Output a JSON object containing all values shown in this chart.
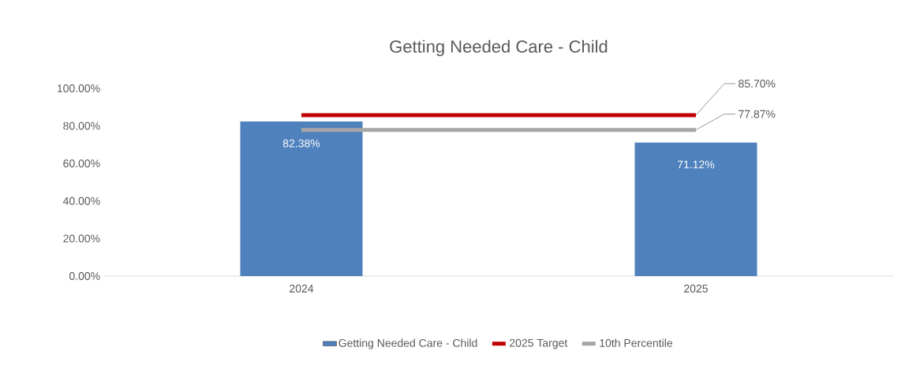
{
  "chart_data": {
    "type": "bar",
    "title": "Getting Needed Care - Child",
    "categories": [
      "2024",
      "2025"
    ],
    "series": [
      {
        "name": "Getting  Needed Care  - Child",
        "color": "#4f81bd",
        "values": [
          82.38,
          71.12
        ],
        "value_labels": [
          "82.38%",
          "71.12%"
        ]
      },
      {
        "name": "2025 Target",
        "type": "line",
        "color": "#c00000",
        "values": [
          85.7,
          85.7
        ],
        "value_labels": [
          null,
          "85.70%"
        ]
      },
      {
        "name": "10th Percentile",
        "type": "line",
        "color": "#a6a6a6",
        "values": [
          77.87,
          77.87
        ],
        "value_labels": [
          null,
          "77.87%"
        ]
      }
    ],
    "ylim": [
      0,
      100
    ],
    "yticks": [
      {
        "value": 0,
        "label": "0.00%"
      },
      {
        "value": 20,
        "label": "20.00%"
      },
      {
        "value": 40,
        "label": "40.00%"
      },
      {
        "value": 60,
        "label": "60.00%"
      },
      {
        "value": 80,
        "label": "80.00%"
      },
      {
        "value": 100,
        "label": "100.00%"
      }
    ],
    "legend": "bottom",
    "grid": false
  }
}
